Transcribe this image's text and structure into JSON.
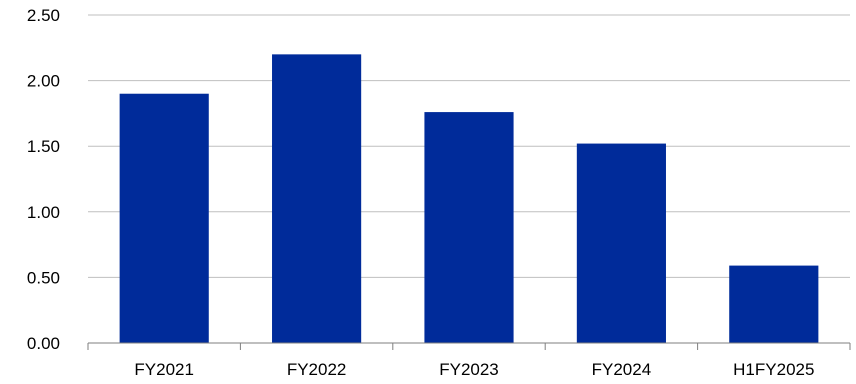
{
  "chart_data": {
    "type": "bar",
    "categories": [
      "FY2021",
      "FY2022",
      "FY2023",
      "FY2024",
      "H1FY2025"
    ],
    "values": [
      1.9,
      2.2,
      1.76,
      1.52,
      0.59
    ],
    "y_ticks": [
      "0.00",
      "0.50",
      "1.00",
      "1.50",
      "2.00",
      "2.50"
    ],
    "ylim": [
      0,
      2.5
    ],
    "grid": true,
    "legend": "none",
    "title": "",
    "xlabel": "",
    "ylabel": "",
    "bar_color": "#002B9A"
  }
}
